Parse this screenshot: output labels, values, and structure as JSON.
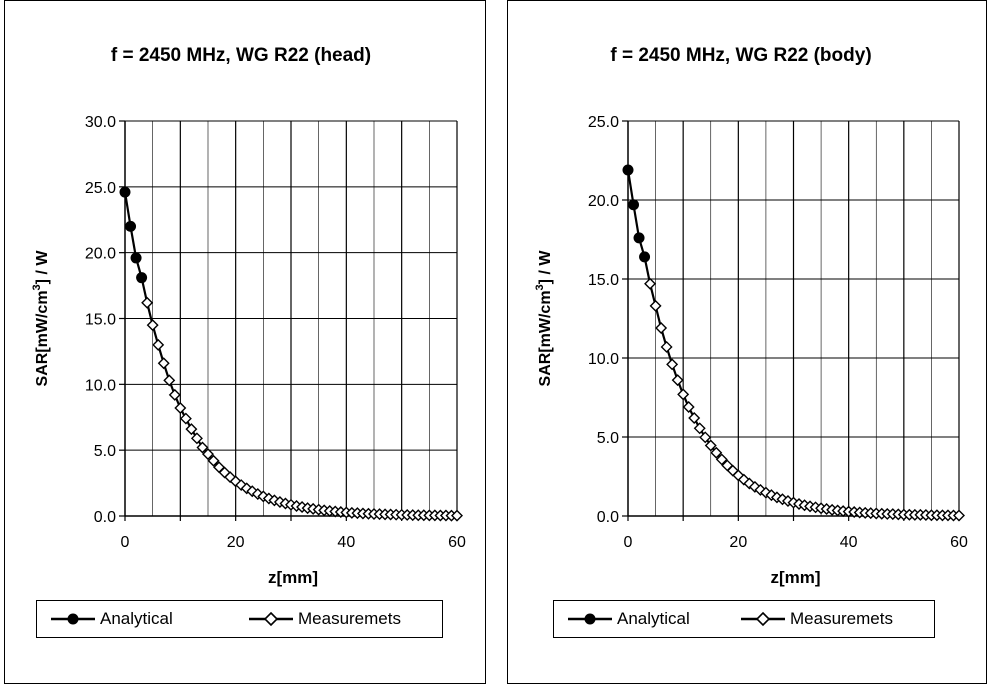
{
  "chart_data": [
    {
      "type": "line",
      "title": "f = 2450 MHz, WG R22 (head)",
      "xlabel": "z[mm]",
      "ylabel_main": "SAR[mW/cm",
      "ylabel_sup": "3",
      "ylabel_tail": "] / W",
      "xlim": [
        0,
        60
      ],
      "ylim": [
        0,
        30
      ],
      "x_ticks": [
        "0",
        "20",
        "40",
        "60"
      ],
      "y_ticks": [
        "0.0",
        "5.0",
        "10.0",
        "15.0",
        "20.0",
        "25.0",
        "30.0"
      ],
      "grid": true,
      "legend_position": "bottom",
      "series": [
        {
          "name": "Analytical",
          "marker": "filled-circle",
          "x": [
            0,
            1,
            2,
            3
          ],
          "y": [
            24.6,
            22.0,
            19.6,
            18.1
          ]
        },
        {
          "name": "Measuremets",
          "marker": "open-diamond",
          "x": [
            4,
            5,
            6,
            7,
            8,
            9,
            10,
            11,
            12,
            13,
            14,
            15,
            16,
            17,
            18,
            19,
            20,
            21,
            22,
            23,
            24,
            25,
            26,
            27,
            28,
            29,
            30,
            31,
            32,
            33,
            34,
            35,
            36,
            37,
            38,
            39,
            40,
            41,
            42,
            43,
            44,
            45,
            46,
            47,
            48,
            49,
            50,
            51,
            52,
            53,
            54,
            55,
            56,
            57,
            58,
            59,
            60
          ],
          "y": [
            16.2,
            14.5,
            13.0,
            11.6,
            10.3,
            9.2,
            8.2,
            7.4,
            6.6,
            5.9,
            5.2,
            4.7,
            4.2,
            3.7,
            3.3,
            2.95,
            2.63,
            2.35,
            2.1,
            1.88,
            1.67,
            1.49,
            1.33,
            1.19,
            1.06,
            0.95,
            0.85,
            0.76,
            0.68,
            0.6,
            0.54,
            0.48,
            0.43,
            0.38,
            0.34,
            0.3,
            0.27,
            0.24,
            0.22,
            0.19,
            0.17,
            0.15,
            0.14,
            0.12,
            0.11,
            0.1,
            0.09,
            0.08,
            0.07,
            0.06,
            0.06,
            0.05,
            0.05,
            0.04,
            0.04,
            0.03,
            0.03
          ]
        }
      ]
    },
    {
      "type": "line",
      "title": "f = 2450 MHz, WG R22 (body)",
      "xlabel": "z[mm]",
      "ylabel_main": "SAR[mW/cm",
      "ylabel_sup": "3",
      "ylabel_tail": "] / W",
      "xlim": [
        0,
        60
      ],
      "ylim": [
        0,
        25
      ],
      "x_ticks": [
        "0",
        "20",
        "40",
        "60"
      ],
      "y_ticks": [
        "0.0",
        "5.0",
        "10.0",
        "15.0",
        "20.0",
        "25.0"
      ],
      "grid": true,
      "legend_position": "bottom",
      "series": [
        {
          "name": "Analytical",
          "marker": "filled-circle",
          "x": [
            0,
            1,
            2,
            3
          ],
          "y": [
            21.9,
            19.7,
            17.6,
            16.4
          ]
        },
        {
          "name": "Measuremets",
          "marker": "open-diamond",
          "x": [
            4,
            5,
            6,
            7,
            8,
            9,
            10,
            11,
            12,
            13,
            14,
            15,
            16,
            17,
            18,
            19,
            20,
            21,
            22,
            23,
            24,
            25,
            26,
            27,
            28,
            29,
            30,
            31,
            32,
            33,
            34,
            35,
            36,
            37,
            38,
            39,
            40,
            41,
            42,
            43,
            44,
            45,
            46,
            47,
            48,
            49,
            50,
            51,
            52,
            53,
            54,
            55,
            56,
            57,
            58,
            59,
            60
          ],
          "y": [
            14.7,
            13.3,
            11.9,
            10.7,
            9.6,
            8.6,
            7.7,
            6.9,
            6.2,
            5.55,
            4.98,
            4.46,
            4.0,
            3.58,
            3.2,
            2.87,
            2.57,
            2.3,
            2.06,
            1.84,
            1.65,
            1.48,
            1.32,
            1.18,
            1.06,
            0.95,
            0.85,
            0.76,
            0.68,
            0.61,
            0.55,
            0.49,
            0.44,
            0.39,
            0.35,
            0.31,
            0.28,
            0.25,
            0.22,
            0.2,
            0.18,
            0.16,
            0.14,
            0.13,
            0.12,
            0.1,
            0.09,
            0.08,
            0.07,
            0.07,
            0.06,
            0.05,
            0.05,
            0.04,
            0.04,
            0.03,
            0.03
          ]
        }
      ]
    }
  ],
  "colors": {
    "line": "#000000",
    "grid": "#000000",
    "background": "#ffffff"
  }
}
